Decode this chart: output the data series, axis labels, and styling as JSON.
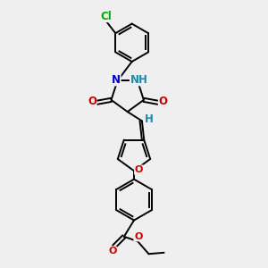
{
  "bg_color": "#efefef",
  "bond_color": "#000000",
  "bond_width": 1.4,
  "atom_colors": {
    "N": "#0000cc",
    "O": "#cc0000",
    "Cl": "#00aa00",
    "H": "#2288aa",
    "C": "#000000"
  },
  "font_size_atom": 8.5
}
